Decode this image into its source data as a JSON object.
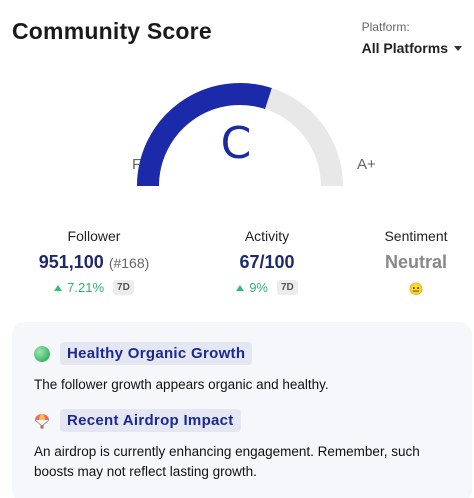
{
  "header": {
    "title": "Community Score"
  },
  "platform": {
    "label": "Platform:",
    "selected": "All Platforms"
  },
  "gauge": {
    "grade": "C",
    "min_label": "F",
    "max_label": "A+",
    "fill_fraction": 0.6,
    "fill_color": "#1a2aa8",
    "track_color": "#e8e8e8"
  },
  "metrics": {
    "follower": {
      "label": "Follower",
      "value": "951,100",
      "rank": "(#168)",
      "change": "7.21%",
      "period": "7D"
    },
    "activity": {
      "label": "Activity",
      "value": "67/100",
      "change": "9%",
      "period": "7D"
    },
    "sentiment": {
      "label": "Sentiment",
      "value": "Neutral",
      "icon": "neutral-face-icon"
    }
  },
  "insights": [
    {
      "icon": "green-dot-icon",
      "title": "Healthy Organic Growth",
      "text": "The follower growth appears organic and healthy."
    },
    {
      "icon": "parachute-icon",
      "title": "Recent Airdrop Impact",
      "text": "An airdrop is currently enhancing engagement. Remember, such boosts may not reflect lasting growth."
    }
  ]
}
